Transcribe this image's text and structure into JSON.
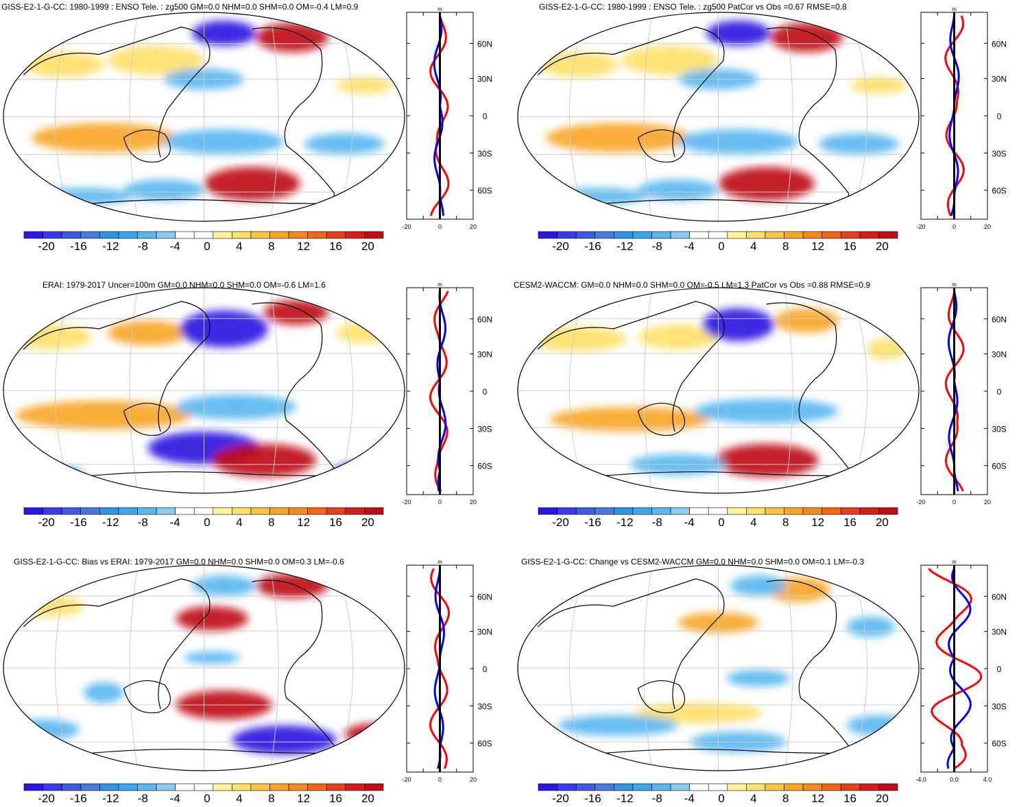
{
  "figure": {
    "colorbar": {
      "colors": [
        "#2a17e0",
        "#3a3ae8",
        "#3f5be4",
        "#4a79dc",
        "#2f93e6",
        "#3aa6ee",
        "#5ab7f0",
        "#8ccaf2",
        "#ffffff",
        "#ffffff",
        "#fff29a",
        "#fde06a",
        "#f9c542",
        "#f7a628",
        "#f48a1e",
        "#ee6616",
        "#e2421a",
        "#d2201c",
        "#bf0d14"
      ],
      "labels": [
        "-20",
        "-16",
        "-12",
        "-8",
        "-4",
        "0",
        "4",
        "8",
        "12",
        "16",
        "20"
      ]
    },
    "lat_labels": [
      "60N",
      "30N",
      "0",
      "30S",
      "60S"
    ],
    "map_colors": {
      "ocean_bg": "#ffffff",
      "coast": "#000000",
      "grid": "#cccccc"
    },
    "panels": [
      {
        "id": "p1",
        "title": "GISS-E2-1-G-CC: 1980-1999 : ENSO Tele. : zg500 GM=0.0 NHM=0.0 SHM=0.0 OM=-0.4 LM=0.9",
        "zonal_unit": "m",
        "zonal_ticks": [
          "-20",
          "0",
          "20"
        ]
      },
      {
        "id": "p2",
        "title": "GISS-E2-1-G-CC: 1980-1999 : ENSO Tele. : zg500 PatCor vs Obs =0.67 RMSE=0.8",
        "zonal_unit": "m",
        "zonal_ticks": [
          "-20",
          "0",
          "20"
        ]
      },
      {
        "id": "p3",
        "title": "ERAI: 1979-2017 Uncer=100m GM=0.0 NHM=0.0 SHM=0.0 OM=-0.6 LM=1.6",
        "zonal_unit": "m",
        "zonal_ticks": [
          "-20",
          "0",
          "20"
        ]
      },
      {
        "id": "p4",
        "title": "CESM2-WACCM: GM=0.0 NHM=0.0 SHM=0.0 OM=-0.5 LM=1.3 PatCor vs Obs =0.88 RMSE=0.9",
        "zonal_unit": "m",
        "zonal_ticks": [
          "-20",
          "0",
          "20"
        ]
      },
      {
        "id": "p5",
        "title": "GISS-E2-1-G-CC: Bias vs ERAI: 1979-2017 GM=0.0 NHM=0.0 SHM=0.0 OM=0.3 LM=-0.6",
        "zonal_unit": "m",
        "zonal_ticks": [
          "-20",
          "0",
          "20"
        ]
      },
      {
        "id": "p6",
        "title": "GISS-E2-1-G-CC: Change vs CESM2-WACCM GM=0.0 NHM=0.0 SHM=0.0 OM=0.1 LM=-0.3",
        "zonal_unit": "m",
        "zonal_ticks": [
          "-4.0",
          "0.0",
          "4.0"
        ]
      }
    ]
  }
}
